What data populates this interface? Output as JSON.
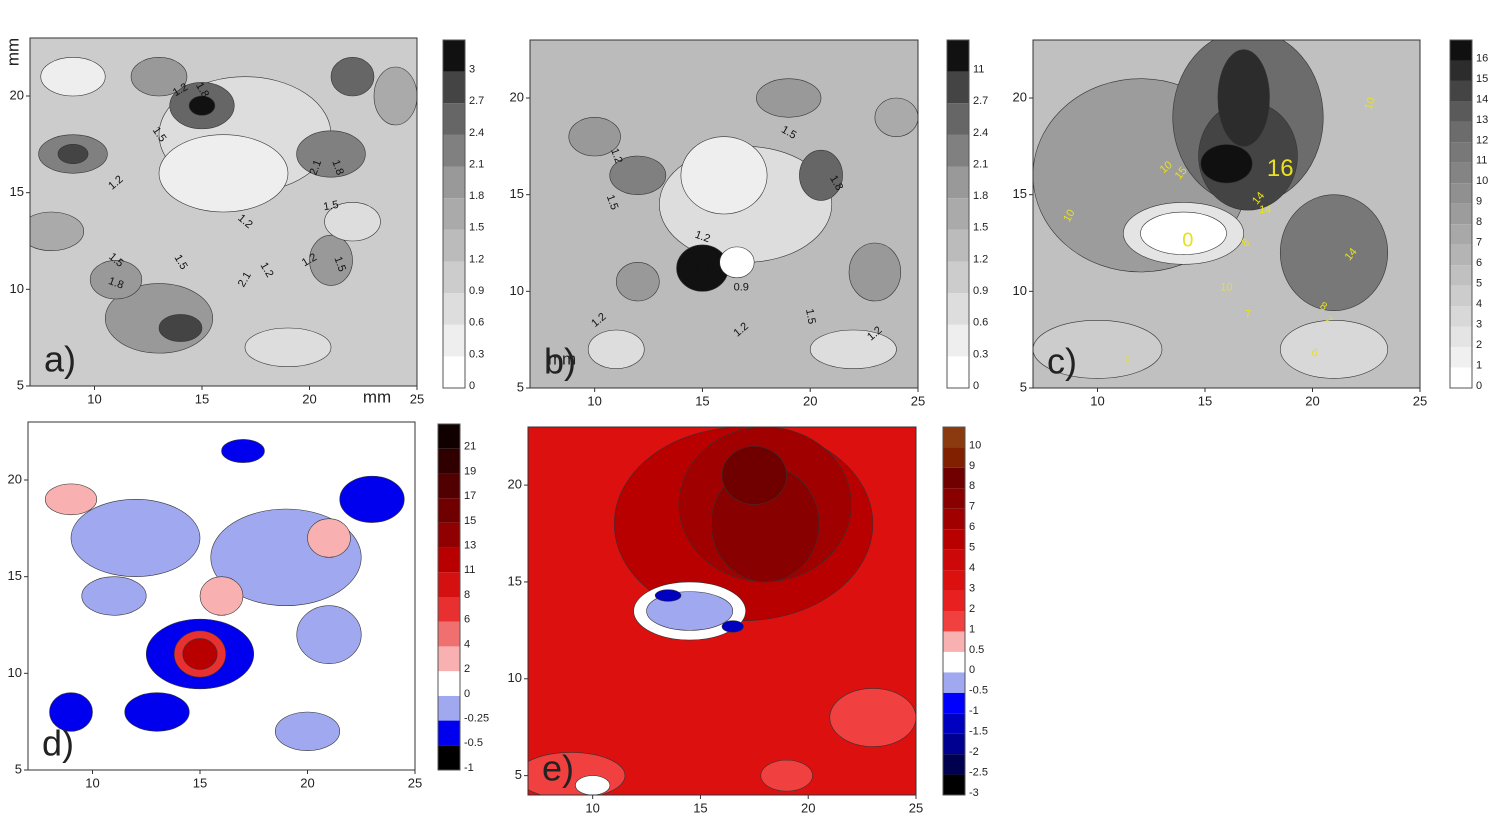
{
  "chart_data": [
    {
      "type": "contour",
      "label": "a)",
      "x_label": "mm",
      "y_label": "mm",
      "xlim": [
        7,
        25
      ],
      "ylim": [
        5,
        23
      ],
      "xticks": [
        10,
        15,
        20,
        25
      ],
      "yticks": [
        5,
        10,
        15,
        20
      ],
      "levels": [
        0,
        0.3,
        0.6,
        0.9,
        1.2,
        1.5,
        1.8,
        2.1,
        2.4,
        2.7,
        3
      ],
      "colors": [
        "#ffffff",
        "#eeeeee",
        "#dddddd",
        "#cccccc",
        "#bbbbbb",
        "#aaaaaa",
        "#999999",
        "#808080",
        "#666666",
        "#444444",
        "#111111"
      ],
      "annotation_color": "#111111",
      "annotations": [
        "1.5",
        "1.2",
        "1.8",
        "1.2",
        "2.1",
        "1.8",
        "1.5",
        "1.2",
        "1.5",
        "1.8",
        "1.5",
        "2.1",
        "1.2",
        "1.2",
        "1.5"
      ]
    },
    {
      "type": "contour",
      "label": "b)",
      "x_label": "mm",
      "xlim": [
        7,
        25
      ],
      "ylim": [
        5,
        23
      ],
      "xticks": [
        10,
        15,
        20,
        25
      ],
      "yticks": [
        5,
        10,
        15,
        20
      ],
      "levels": [
        0,
        0.3,
        0.6,
        0.9,
        1.2,
        1.5,
        1.8,
        2.1,
        2.4,
        2.7,
        11
      ],
      "colors": [
        "#ffffff",
        "#eeeeee",
        "#dddddd",
        "#cccccc",
        "#bbbbbb",
        "#aaaaaa",
        "#999999",
        "#808080",
        "#666666",
        "#444444",
        "#111111"
      ],
      "annotation_color": "#111111",
      "annotations": [
        "11",
        "1.5",
        "1.2",
        "1.5",
        "1.2",
        "0.9",
        "1.2",
        "1.2",
        "1.2",
        "1.5",
        "1.8",
        "1.2"
      ]
    },
    {
      "type": "contour",
      "label": "c)",
      "xlim": [
        7,
        25
      ],
      "ylim": [
        5,
        23
      ],
      "xticks": [
        10,
        15,
        20,
        25
      ],
      "yticks": [
        5,
        10,
        15,
        20
      ],
      "levels": [
        0,
        1,
        2,
        3,
        4,
        5,
        6,
        7,
        8,
        9,
        10,
        11,
        12,
        13,
        14,
        15,
        16
      ],
      "colors": [
        "#ffffff",
        "#f0f0f0",
        "#e4e4e4",
        "#d8d8d8",
        "#cccccc",
        "#c0c0c0",
        "#b4b4b4",
        "#a8a8a8",
        "#9c9c9c",
        "#909090",
        "#848484",
        "#787878",
        "#6c6c6c",
        "#5a5a5a",
        "#444444",
        "#2c2c2c",
        "#101010"
      ],
      "annotation_color": "#e8e020",
      "annotations": [
        "16",
        "0",
        "14",
        "10",
        "15",
        "10",
        "14",
        "10",
        "14",
        "10",
        "8",
        "7",
        "8",
        "7",
        "6",
        "8"
      ]
    },
    {
      "type": "contour",
      "label": "d)",
      "xlim": [
        7,
        25
      ],
      "ylim": [
        5,
        23
      ],
      "xticks": [
        10,
        15,
        20,
        25
      ],
      "yticks": [
        5,
        10,
        15,
        20
      ],
      "levels": [
        -1,
        -0.5,
        -0.25,
        0,
        2,
        4,
        6,
        8,
        11,
        13,
        15,
        17,
        19,
        21
      ],
      "colors": [
        "#000000",
        "#0000ee",
        "#a0a8f0",
        "#ffffff",
        "#f8b0b0",
        "#f07070",
        "#e83030",
        "#d41010",
        "#b80000",
        "#900000",
        "#700000",
        "#500000",
        "#300000",
        "#100000"
      ],
      "annotations": []
    },
    {
      "type": "contour",
      "label": "e)",
      "xlim": [
        7,
        25
      ],
      "ylim": [
        4,
        23
      ],
      "xticks": [
        10,
        15,
        20,
        25
      ],
      "yticks": [
        5,
        10,
        15,
        20
      ],
      "levels": [
        -3,
        -2.5,
        -2,
        -1.5,
        -1,
        -0.5,
        0,
        0.5,
        1,
        2,
        3,
        4,
        5,
        6,
        7,
        8,
        9,
        10
      ],
      "colors": [
        "#000000",
        "#000050",
        "#000090",
        "#0000c0",
        "#0000ff",
        "#a0a8f0",
        "#ffffff",
        "#f8b0b0",
        "#f04040",
        "#e82020",
        "#dd1010",
        "#cc0808",
        "#b80000",
        "#a00000",
        "#880000",
        "#700000",
        "#802000",
        "#8b3a10"
      ],
      "annotations": []
    }
  ]
}
